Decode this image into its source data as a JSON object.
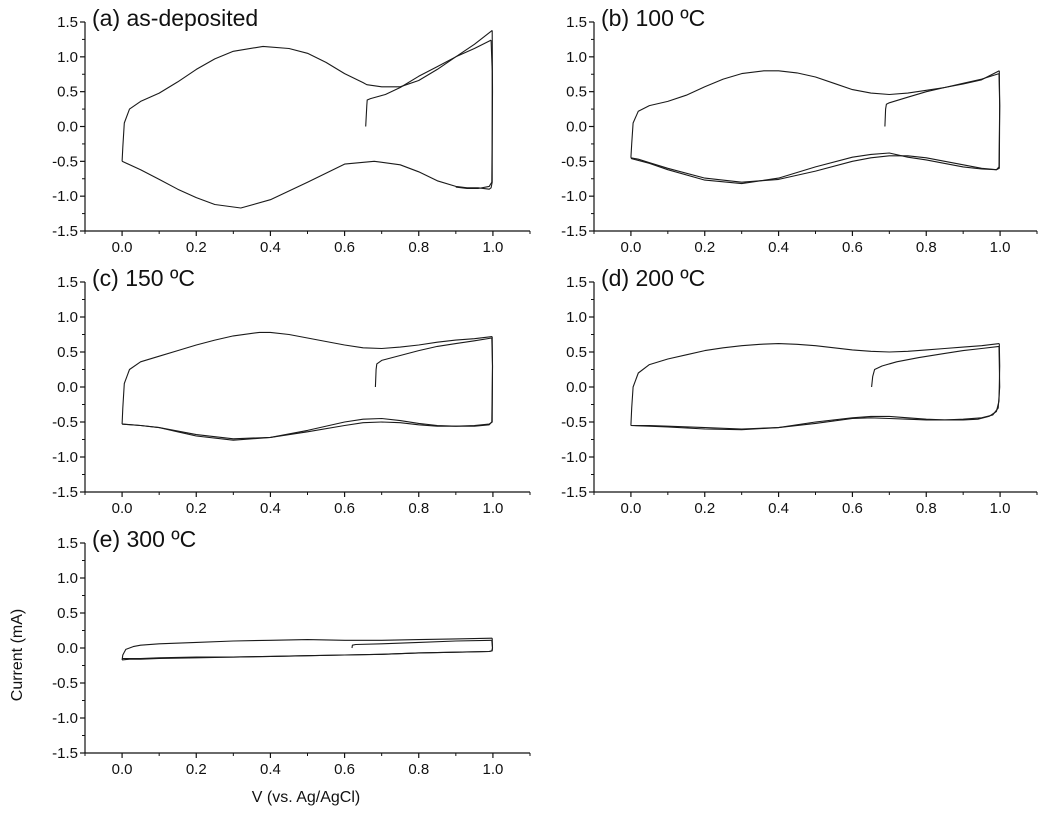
{
  "figure": {
    "ylabel": "Current (mA)",
    "xlabel": "V (vs. Ag/AgCl)"
  },
  "chart_data": [
    {
      "type": "line",
      "title": "(a) as-deposited",
      "xlim": [
        -0.1,
        1.1
      ],
      "ylim": [
        -1.5,
        1.5
      ],
      "xticks": [
        "0.0",
        "0.2",
        "0.4",
        "0.6",
        "0.8",
        "1.0"
      ],
      "yticks": [
        "-1.5",
        "-1.0",
        "-0.5",
        "0.0",
        "0.5",
        "1.0",
        "1.5"
      ],
      "series": [
        {
          "x": [
            0.657,
            0.66,
            0.661,
            0.67,
            0.71,
            0.75,
            0.8,
            0.85,
            0.9,
            0.95,
            0.995
          ],
          "y": [
            0.0,
            0.3,
            0.38,
            0.4,
            0.46,
            0.56,
            0.72,
            0.86,
            1.0,
            1.12,
            1.24
          ]
        },
        {
          "x": [
            0.995,
            0.998,
            0.998,
            0.995,
            0.99,
            0.96,
            0.93,
            0.9,
            0.85,
            0.8,
            0.75,
            0.68,
            0.6,
            0.5,
            0.4,
            0.32,
            0.25,
            0.2,
            0.15,
            0.1,
            0.05,
            0.0
          ],
          "y": [
            1.24,
            0.8,
            -0.8,
            -0.88,
            -0.9,
            -0.88,
            -0.88,
            -0.86,
            -0.78,
            -0.65,
            -0.55,
            -0.5,
            -0.54,
            -0.8,
            -1.05,
            -1.17,
            -1.12,
            -1.02,
            -0.9,
            -0.76,
            -0.62,
            -0.5
          ]
        },
        {
          "x": [
            0.0,
            0.002,
            0.006,
            0.02,
            0.05,
            0.1,
            0.15,
            0.2,
            0.25,
            0.3,
            0.38,
            0.45,
            0.5,
            0.55,
            0.6,
            0.65,
            0.66,
            0.7,
            0.75,
            0.8,
            0.85,
            0.9,
            0.95,
            0.998
          ],
          "y": [
            -0.5,
            -0.3,
            0.05,
            0.25,
            0.36,
            0.48,
            0.64,
            0.82,
            0.97,
            1.08,
            1.15,
            1.12,
            1.05,
            0.92,
            0.76,
            0.63,
            0.6,
            0.57,
            0.57,
            0.66,
            0.82,
            1.0,
            1.18,
            1.38
          ]
        },
        {
          "x": [
            0.998,
            0.999,
            0.997,
            0.99,
            0.96,
            0.93,
            0.9
          ],
          "y": [
            1.38,
            0.5,
            -0.8,
            -0.86,
            -0.89,
            -0.89,
            -0.87
          ]
        }
      ]
    },
    {
      "type": "line",
      "title": "(b) 100 ºC",
      "xlim": [
        -0.1,
        1.1
      ],
      "ylim": [
        -1.5,
        1.5
      ],
      "xticks": [
        "0.0",
        "0.2",
        "0.4",
        "0.6",
        "0.8",
        "1.0"
      ],
      "yticks": [
        "-1.5",
        "-1.0",
        "-0.5",
        "0.0",
        "0.5",
        "1.0",
        "1.5"
      ],
      "series": [
        {
          "x": [
            0.688,
            0.69,
            0.692,
            0.7,
            0.75,
            0.8,
            0.85,
            0.9,
            0.95,
            0.997
          ],
          "y": [
            0.0,
            0.25,
            0.32,
            0.34,
            0.42,
            0.5,
            0.56,
            0.62,
            0.68,
            0.76
          ]
        },
        {
          "x": [
            0.997,
            0.999,
            0.998,
            0.99,
            0.95,
            0.9,
            0.85,
            0.8,
            0.75,
            0.7,
            0.65,
            0.6,
            0.5,
            0.4,
            0.3,
            0.2,
            0.1,
            0.05,
            0.02,
            0.0
          ],
          "y": [
            0.76,
            0.3,
            -0.6,
            -0.62,
            -0.6,
            -0.55,
            -0.5,
            -0.45,
            -0.42,
            -0.42,
            -0.45,
            -0.5,
            -0.64,
            -0.76,
            -0.8,
            -0.74,
            -0.6,
            -0.52,
            -0.47,
            -0.45
          ]
        },
        {
          "x": [
            0.0,
            0.002,
            0.006,
            0.02,
            0.05,
            0.1,
            0.15,
            0.2,
            0.25,
            0.3,
            0.36,
            0.4,
            0.45,
            0.5,
            0.55,
            0.6,
            0.65,
            0.7,
            0.75,
            0.8,
            0.85,
            0.9,
            0.95,
            0.998
          ],
          "y": [
            -0.45,
            -0.25,
            0.05,
            0.22,
            0.3,
            0.36,
            0.45,
            0.57,
            0.68,
            0.76,
            0.8,
            0.8,
            0.77,
            0.71,
            0.62,
            0.53,
            0.48,
            0.46,
            0.48,
            0.52,
            0.56,
            0.61,
            0.67,
            0.8
          ]
        },
        {
          "x": [
            0.998,
            0.999,
            0.997,
            0.99,
            0.95,
            0.9,
            0.85,
            0.8,
            0.75,
            0.7,
            0.65,
            0.6,
            0.5,
            0.4,
            0.3,
            0.2,
            0.1,
            0.05,
            0.0
          ],
          "y": [
            0.8,
            0.3,
            -0.58,
            -0.62,
            -0.61,
            -0.58,
            -0.53,
            -0.48,
            -0.44,
            -0.38,
            -0.4,
            -0.44,
            -0.58,
            -0.74,
            -0.82,
            -0.77,
            -0.62,
            -0.53,
            -0.46
          ]
        }
      ]
    },
    {
      "type": "line",
      "title": "(c) 150 ºC",
      "xlim": [
        -0.1,
        1.1
      ],
      "ylim": [
        -1.5,
        1.5
      ],
      "xticks": [
        "0.0",
        "0.2",
        "0.4",
        "0.6",
        "0.8",
        "1.0"
      ],
      "yticks": [
        "-1.5",
        "-1.0",
        "-0.5",
        "0.0",
        "0.5",
        "1.0",
        "1.5"
      ],
      "series": [
        {
          "x": [
            0.683,
            0.685,
            0.687,
            0.7,
            0.75,
            0.8,
            0.85,
            0.9,
            0.95,
            0.997
          ],
          "y": [
            0.0,
            0.25,
            0.33,
            0.38,
            0.45,
            0.52,
            0.58,
            0.62,
            0.66,
            0.7
          ]
        },
        {
          "x": [
            0.997,
            0.999,
            0.998,
            0.99,
            0.95,
            0.9,
            0.85,
            0.8,
            0.75,
            0.7,
            0.65,
            0.6,
            0.5,
            0.4,
            0.3,
            0.2,
            0.15,
            0.1,
            0.05,
            0.0
          ],
          "y": [
            0.7,
            0.3,
            -0.5,
            -0.53,
            -0.55,
            -0.56,
            -0.56,
            -0.54,
            -0.51,
            -0.5,
            -0.51,
            -0.55,
            -0.64,
            -0.72,
            -0.76,
            -0.7,
            -0.64,
            -0.58,
            -0.55,
            -0.53
          ]
        },
        {
          "x": [
            0.0,
            0.002,
            0.006,
            0.02,
            0.05,
            0.1,
            0.15,
            0.2,
            0.25,
            0.3,
            0.37,
            0.4,
            0.45,
            0.5,
            0.55,
            0.6,
            0.65,
            0.7,
            0.75,
            0.8,
            0.85,
            0.9,
            0.95,
            0.998
          ],
          "y": [
            -0.53,
            -0.3,
            0.05,
            0.25,
            0.36,
            0.44,
            0.52,
            0.6,
            0.67,
            0.73,
            0.78,
            0.78,
            0.75,
            0.7,
            0.65,
            0.6,
            0.56,
            0.55,
            0.57,
            0.6,
            0.64,
            0.67,
            0.69,
            0.72
          ]
        },
        {
          "x": [
            0.998,
            0.999,
            0.997,
            0.99,
            0.95,
            0.9,
            0.85,
            0.8,
            0.75,
            0.7,
            0.65,
            0.6,
            0.5,
            0.4,
            0.3,
            0.2,
            0.1,
            0.05,
            0.0
          ],
          "y": [
            0.72,
            0.3,
            -0.5,
            -0.54,
            -0.56,
            -0.56,
            -0.55,
            -0.52,
            -0.48,
            -0.45,
            -0.46,
            -0.5,
            -0.62,
            -0.72,
            -0.74,
            -0.68,
            -0.58,
            -0.55,
            -0.53
          ]
        }
      ]
    },
    {
      "type": "line",
      "title": "(d) 200 ºC",
      "xlim": [
        -0.1,
        1.1
      ],
      "ylim": [
        -1.5,
        1.5
      ],
      "xticks": [
        "0.0",
        "0.2",
        "0.4",
        "0.6",
        "0.8",
        "1.0"
      ],
      "yticks": [
        "-1.5",
        "-1.0",
        "-0.5",
        "0.0",
        "0.5",
        "1.0",
        "1.5"
      ],
      "series": [
        {
          "x": [
            0.652,
            0.655,
            0.66,
            0.68,
            0.72,
            0.78,
            0.85,
            0.9,
            0.95,
            0.997
          ],
          "y": [
            0.0,
            0.15,
            0.25,
            0.3,
            0.36,
            0.42,
            0.48,
            0.52,
            0.55,
            0.58
          ]
        },
        {
          "x": [
            0.997,
            0.999,
            0.995,
            0.98,
            0.95,
            0.9,
            0.85,
            0.8,
            0.75,
            0.7,
            0.65,
            0.6,
            0.5,
            0.4,
            0.3,
            0.2,
            0.1,
            0.05,
            0.0
          ],
          "y": [
            0.58,
            0.0,
            -0.3,
            -0.4,
            -0.44,
            -0.46,
            -0.47,
            -0.47,
            -0.46,
            -0.45,
            -0.44,
            -0.45,
            -0.52,
            -0.58,
            -0.6,
            -0.58,
            -0.56,
            -0.55,
            -0.55
          ]
        },
        {
          "x": [
            0.0,
            0.002,
            0.006,
            0.02,
            0.05,
            0.1,
            0.15,
            0.2,
            0.25,
            0.3,
            0.35,
            0.4,
            0.45,
            0.5,
            0.55,
            0.6,
            0.65,
            0.7,
            0.75,
            0.8,
            0.85,
            0.9,
            0.95,
            0.998
          ],
          "y": [
            -0.55,
            -0.3,
            0.0,
            0.2,
            0.32,
            0.4,
            0.46,
            0.52,
            0.56,
            0.59,
            0.61,
            0.62,
            0.61,
            0.59,
            0.56,
            0.53,
            0.51,
            0.5,
            0.51,
            0.53,
            0.55,
            0.57,
            0.59,
            0.62
          ]
        },
        {
          "x": [
            0.998,
            0.999,
            0.997,
            0.99,
            0.97,
            0.94,
            0.9,
            0.85,
            0.8,
            0.75,
            0.7,
            0.65,
            0.6,
            0.5,
            0.4,
            0.3,
            0.2,
            0.1,
            0.05,
            0.0
          ],
          "y": [
            0.62,
            0.3,
            -0.2,
            -0.35,
            -0.42,
            -0.46,
            -0.47,
            -0.47,
            -0.46,
            -0.44,
            -0.42,
            -0.42,
            -0.44,
            -0.5,
            -0.58,
            -0.61,
            -0.6,
            -0.57,
            -0.56,
            -0.55
          ]
        }
      ]
    },
    {
      "type": "line",
      "title": "(e) 300 ºC",
      "xlim": [
        -0.1,
        1.1
      ],
      "ylim": [
        -1.5,
        1.5
      ],
      "xticks": [
        "0.0",
        "0.2",
        "0.4",
        "0.6",
        "0.8",
        "1.0"
      ],
      "yticks": [
        "-1.5",
        "-1.0",
        "-0.5",
        "0.0",
        "0.5",
        "1.0",
        "1.5"
      ],
      "series": [
        {
          "x": [
            0.62,
            0.621,
            0.63,
            0.7,
            0.8,
            0.9,
            0.997
          ],
          "y": [
            0.0,
            0.04,
            0.05,
            0.06,
            0.08,
            0.1,
            0.11
          ]
        },
        {
          "x": [
            0.997,
            0.999,
            0.998,
            0.99,
            0.9,
            0.8,
            0.7,
            0.6,
            0.5,
            0.4,
            0.3,
            0.2,
            0.1,
            0.05,
            0.02,
            0.0
          ],
          "y": [
            0.11,
            0.0,
            -0.04,
            -0.05,
            -0.06,
            -0.07,
            -0.09,
            -0.1,
            -0.11,
            -0.12,
            -0.13,
            -0.14,
            -0.15,
            -0.16,
            -0.16,
            -0.17
          ]
        },
        {
          "x": [
            0.0,
            0.002,
            0.01,
            0.03,
            0.05,
            0.1,
            0.2,
            0.3,
            0.4,
            0.5,
            0.6,
            0.7,
            0.8,
            0.9,
            0.998
          ],
          "y": [
            -0.17,
            -0.1,
            -0.02,
            0.02,
            0.04,
            0.06,
            0.08,
            0.1,
            0.11,
            0.12,
            0.11,
            0.11,
            0.12,
            0.13,
            0.14
          ]
        },
        {
          "x": [
            0.998,
            0.999,
            0.997,
            0.99,
            0.9,
            0.8,
            0.7,
            0.6,
            0.5,
            0.4,
            0.3,
            0.2,
            0.1,
            0.05,
            0.0
          ],
          "y": [
            0.14,
            0.0,
            -0.04,
            -0.05,
            -0.06,
            -0.07,
            -0.09,
            -0.1,
            -0.11,
            -0.12,
            -0.13,
            -0.13,
            -0.14,
            -0.15,
            -0.15
          ]
        }
      ]
    }
  ]
}
